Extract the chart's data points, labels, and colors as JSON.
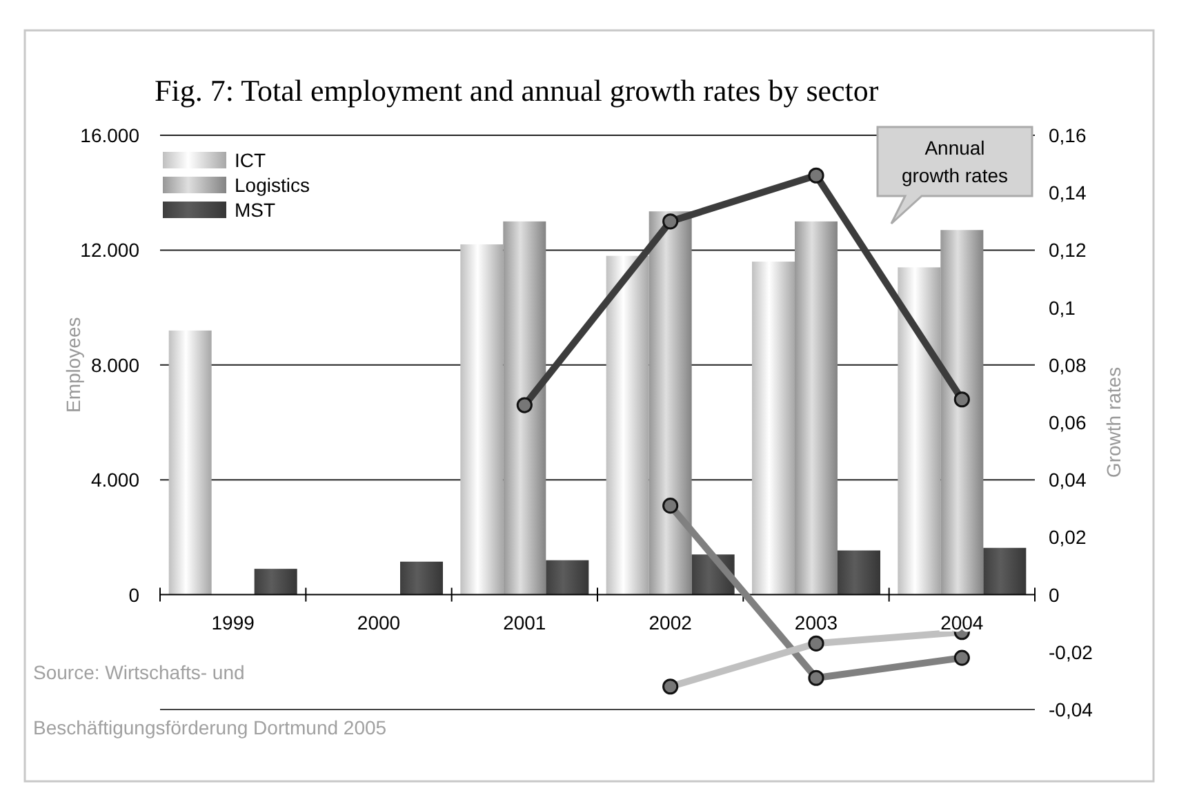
{
  "chart_data": {
    "type": "bar",
    "title": "Fig. 7: Total employment and annual growth rates by sector",
    "ylabel": "Employees",
    "y2label": "Growth rates",
    "categories": [
      "1999",
      "2000",
      "2001",
      "2002",
      "2003",
      "2004"
    ],
    "series": [
      {
        "name": "ICT",
        "color": "#e6e6e6",
        "values": [
          9200,
          null,
          12200,
          11800,
          11600,
          11400
        ]
      },
      {
        "name": "Logistics",
        "color": "#b4b4b4",
        "values": [
          null,
          null,
          13000,
          13350,
          13000,
          12700
        ]
      },
      {
        "name": "MST",
        "color": "#4a4a4a",
        "values": [
          900,
          1150,
          1200,
          1400,
          1540,
          1630
        ]
      },
      {
        "type": "line",
        "axis": "y2",
        "color": "#3c3c3c",
        "values": [
          null,
          null,
          0.066,
          0.13,
          0.146,
          0.068
        ]
      },
      {
        "type": "line",
        "axis": "y2",
        "color": "#808080",
        "values": [
          null,
          null,
          null,
          0.031,
          -0.029,
          -0.022
        ]
      },
      {
        "type": "line",
        "axis": "y2",
        "color": "#c0c0c0",
        "values": [
          null,
          null,
          null,
          -0.032,
          -0.017,
          -0.013
        ]
      }
    ],
    "ylim": [
      -4000,
      16000
    ],
    "yticks": [
      0,
      {
        "value": 4000,
        "label": "4.000"
      },
      {
        "value": 8000,
        "label": "8.000"
      },
      {
        "value": 12000,
        "label": "12.000"
      },
      {
        "value": 16000,
        "label": "16.000"
      }
    ],
    "y2lim": [
      -0.04,
      0.16
    ],
    "y2ticks": [
      {
        "value": 0.16,
        "label": "0,16"
      },
      {
        "value": 0.14,
        "label": "0,14"
      },
      {
        "value": 0.12,
        "label": "0,12"
      },
      {
        "value": 0.1,
        "label": "0,1"
      },
      {
        "value": 0.08,
        "label": "0,08"
      },
      {
        "value": 0.06,
        "label": "0,06"
      },
      {
        "value": 0.04,
        "label": "0,04"
      },
      {
        "value": 0.02,
        "label": "0,02"
      },
      0,
      {
        "value": -0.02,
        "label": "-0,02"
      },
      {
        "value": -0.04,
        "label": "-0,04"
      }
    ],
    "grid": "y",
    "legend": "top left",
    "marker": "circle",
    "annotations": [
      {
        "text": "Annual growth rates"
      },
      "Source: Wirtschafts- und Beschäftigungsförderung Dortmund  2005"
    ]
  }
}
